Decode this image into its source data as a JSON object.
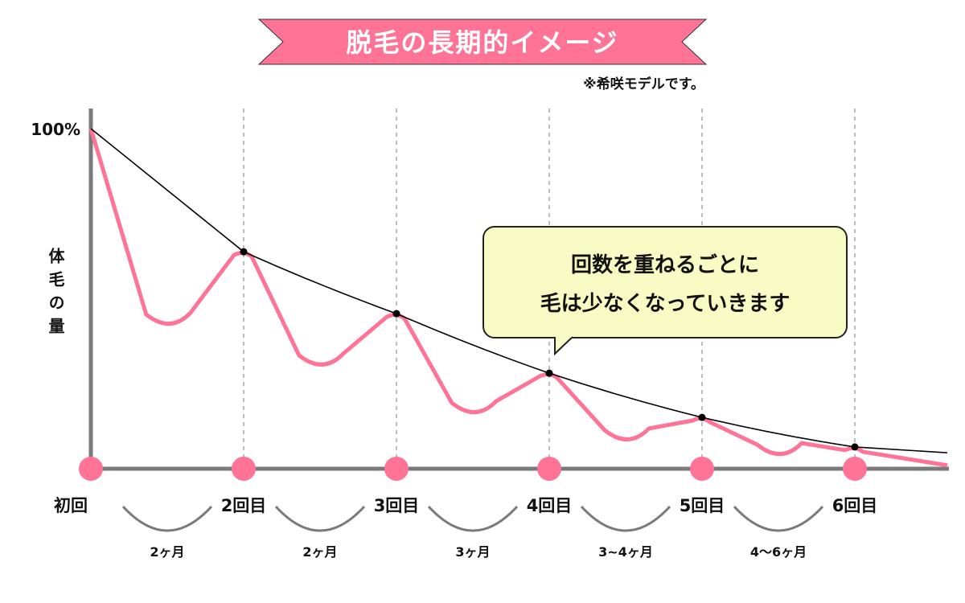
{
  "header": {
    "title": "脱毛の長期的イメージ",
    "note": "※希咲モデルです。"
  },
  "callout": {
    "line1": "回数を重ねるごとに",
    "line2": "毛は少なくなっていきます"
  },
  "colors": {
    "accent": "#ff7396",
    "callout_bg": "#f8fcc4",
    "axis": "#7a7a7a",
    "trend": "#000000"
  },
  "chart_data": {
    "type": "line",
    "title": "脱毛の長期的イメージ",
    "ylabel": "体毛の量",
    "ytick_label": "100%",
    "ylim": [
      0,
      100
    ],
    "categories": [
      "初回",
      "2回目",
      "3回目",
      "4回目",
      "5回目",
      "6回目"
    ],
    "intervals": [
      "2ヶ月",
      "2ヶ月",
      "3ヶ月",
      "3~4ヶ月",
      "4～6ヶ月"
    ],
    "grid": "vertical dashed lines at each session",
    "series": [
      {
        "role": "trend",
        "color": "#000000",
        "values": [
          100,
          63.8,
          45.6,
          28.1,
          15.1,
          6.4
        ],
        "tail": 4.7
      },
      {
        "role": "hair-amount",
        "color": "#ff7396",
        "values": [
          100,
          63.8,
          45.6,
          28.1,
          15.1,
          6.4
        ],
        "dips": [
          43,
          31,
          17,
          9,
          4.7
        ],
        "tail": 1
      }
    ]
  }
}
